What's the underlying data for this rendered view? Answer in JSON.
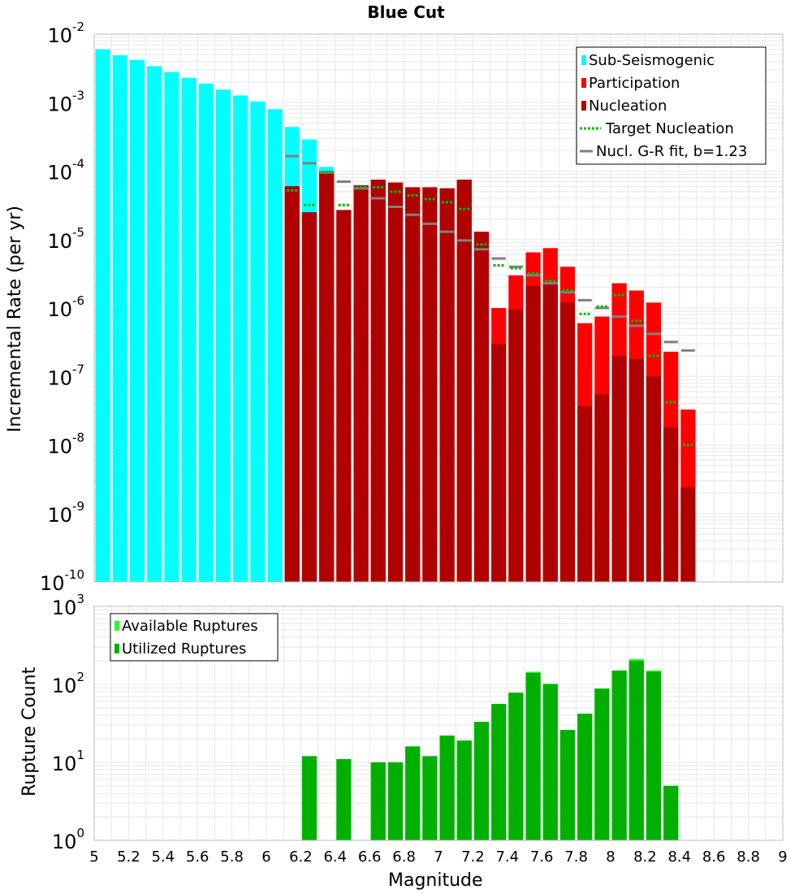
{
  "title": "Blue Cut",
  "colors": {
    "sub": "#00ffff",
    "participation": "#ff0000",
    "nucleation": "#b00000",
    "target": "#00bb00",
    "gr": "#808080",
    "available": "#22ff22",
    "utilized": "#00b000",
    "grid": "#e8e8e8",
    "frame": "#bdbdbd"
  },
  "chart_data": [
    {
      "type": "bar",
      "title": "Blue Cut",
      "xlabel": "Magnitude",
      "ylabel": "Incremental Rate (per yr)",
      "xlim": [
        5,
        9
      ],
      "ylim": [
        1e-10,
        0.01
      ],
      "y_scale": "log",
      "grid": true,
      "legend_position": "top-right",
      "legend": [
        "Sub-Seismogenic",
        "Participation",
        "Nucleation",
        "Target Nucleation",
        "Nucl. G-R fit, b=1.23"
      ],
      "series": [
        {
          "name": "Sub-Seismogenic",
          "x": [
            5.05,
            5.15,
            5.25,
            5.35,
            5.45,
            5.55,
            5.65,
            5.75,
            5.85,
            5.95,
            6.05,
            6.15,
            6.25,
            6.35
          ],
          "values": [
            0.006,
            0.0049,
            0.0042,
            0.0034,
            0.0028,
            0.0023,
            0.0019,
            0.00155,
            0.00127,
            0.00104,
            0.0008,
            0.00044,
            0.00029,
            0.000115
          ]
        },
        {
          "name": "Participation",
          "x": [
            6.15,
            6.25,
            6.35,
            6.45,
            6.55,
            6.65,
            6.75,
            6.85,
            6.95,
            7.05,
            7.15,
            7.25,
            7.35,
            7.45,
            7.55,
            7.65,
            7.75,
            7.85,
            7.95,
            8.05,
            8.15,
            8.25,
            8.35,
            8.45
          ],
          "values": [
            6e-05,
            2.5e-05,
            0.0001,
            2.7e-05,
            6.2e-05,
            7.5e-05,
            6.8e-05,
            5.8e-05,
            5.8e-05,
            5.6e-05,
            7.5e-05,
            1.3e-05,
            1e-06,
            3e-06,
            6.5e-06,
            7.5e-06,
            4e-06,
            6e-07,
            7.5e-07,
            2.3e-06,
            1.8e-06,
            1.2e-06,
            2.3e-07,
            3.3e-08
          ]
        },
        {
          "name": "Nucleation",
          "x": [
            6.15,
            6.25,
            6.35,
            6.45,
            6.55,
            6.65,
            6.75,
            6.85,
            6.95,
            7.05,
            7.15,
            7.25,
            7.35,
            7.45,
            7.55,
            7.65,
            7.75,
            7.85,
            7.95,
            8.05,
            8.15,
            8.25,
            8.35,
            8.45
          ],
          "values": [
            6e-05,
            2.5e-05,
            0.0001,
            2.7e-05,
            6.2e-05,
            7.5e-05,
            6.8e-05,
            5.8e-05,
            5.8e-05,
            5.6e-05,
            7.5e-05,
            1.3e-05,
            3e-07,
            9.5e-07,
            2.1e-06,
            2.3e-06,
            1.2e-06,
            3.7e-08,
            5.5e-08,
            2e-07,
            1.8e-07,
            1e-07,
            1.8e-08,
            2.4e-09
          ]
        },
        {
          "name": "Target Nucleation",
          "x": [
            6.15,
            6.25,
            6.35,
            6.45,
            6.55,
            6.65,
            6.75,
            6.85,
            6.95,
            7.05,
            7.15,
            7.25,
            7.35,
            7.45,
            7.55,
            7.65,
            7.75,
            7.85,
            7.95,
            8.05,
            8.15,
            8.25,
            8.35,
            8.45
          ],
          "values": [
            5.2e-05,
            3.2e-05,
            9.5e-05,
            3.2e-05,
            5.8e-05,
            5.8e-05,
            5e-05,
            4.4e-05,
            3.9e-05,
            3.5e-05,
            2.8e-05,
            8.5e-06,
            4.2e-06,
            3.8e-06,
            3.2e-06,
            2.5e-06,
            1.8e-06,
            8.2e-07,
            1.05e-06,
            1.55e-06,
            6.5e-07,
            2e-07,
            4.2e-08,
            1e-08
          ]
        },
        {
          "name": "Nucl. G-R fit, b=1.23",
          "x": [
            6.15,
            6.25,
            6.35,
            6.45,
            6.55,
            6.65,
            6.75,
            6.85,
            6.95,
            7.05,
            7.15,
            7.25,
            7.35,
            7.45,
            7.55,
            7.65,
            7.75,
            7.85,
            7.95,
            8.05,
            8.15,
            8.25,
            8.35,
            8.45
          ],
          "values": [
            0.000165,
            0.00013,
            9.5e-05,
            7e-05,
            5.6e-05,
            4e-05,
            3e-05,
            2.3e-05,
            1.7e-05,
            1.3e-05,
            9.7e-06,
            7.2e-06,
            5.3e-06,
            4e-06,
            3e-06,
            2.3e-06,
            1.7e-06,
            1.3e-06,
            1e-06,
            7.5e-07,
            5.5e-07,
            4.2e-07,
            3.2e-07,
            2.4e-07
          ]
        }
      ]
    },
    {
      "type": "bar",
      "xlabel": "Magnitude",
      "ylabel": "Rupture Count",
      "xlim": [
        5,
        9
      ],
      "ylim": [
        1,
        1000
      ],
      "y_scale": "log",
      "grid": true,
      "legend_position": "top-left",
      "legend": [
        "Available Ruptures",
        "Utilized Ruptures"
      ],
      "x_ticks": [
        "5",
        "5.2",
        "5.4",
        "5.6",
        "5.8",
        "6",
        "6.2",
        "6.4",
        "6.6",
        "6.8",
        "7",
        "7.2",
        "7.4",
        "7.6",
        "7.8",
        "8",
        "8.2",
        "8.4",
        "8.6",
        "8.8",
        "9"
      ],
      "series": [
        {
          "name": "Available Ruptures",
          "x": [
            6.25,
            6.45,
            6.65,
            6.75,
            6.85,
            6.95,
            7.05,
            7.15,
            7.25,
            7.35,
            7.45,
            7.55,
            7.65,
            7.75,
            7.85,
            7.95,
            8.05,
            8.15,
            8.25,
            8.35
          ],
          "values": [
            12,
            11,
            10,
            10,
            16,
            12,
            22,
            19,
            33,
            56,
            78,
            145,
            102,
            26,
            42,
            88,
            150,
            210,
            150,
            5
          ]
        },
        {
          "name": "Utilized Ruptures",
          "x": [
            6.25,
            6.45,
            6.65,
            6.75,
            6.85,
            6.95,
            7.05,
            7.15,
            7.25,
            7.35,
            7.45,
            7.55,
            7.65,
            7.75,
            7.85,
            7.95,
            8.05,
            8.15,
            8.25,
            8.35
          ],
          "values": [
            12,
            11,
            10,
            10,
            16,
            12,
            22,
            19,
            33,
            56,
            78,
            140,
            100,
            26,
            42,
            88,
            150,
            200,
            145,
            5
          ]
        }
      ]
    }
  ]
}
